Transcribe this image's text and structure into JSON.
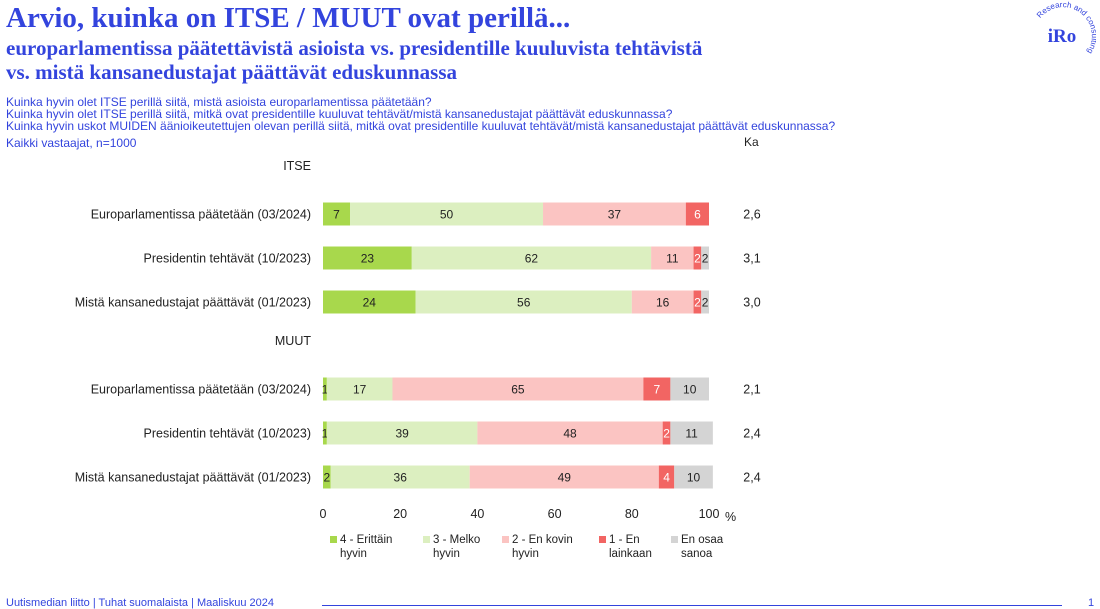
{
  "header": {
    "title": "Arvio, kuinka on ITSE / MUUT ovat perillä...",
    "subtitle_lines": [
      "europarlamentissa päätettävistä asioista vs. presidentille kuuluvista tehtävistä",
      "vs. mistä kansanedustajat päättävät eduskunnassa"
    ],
    "questions": [
      "Kuinka hyvin olet ITSE perillä siitä, mistä asioista europarlamentissa päätetään?",
      "Kuinka hyvin olet ITSE perillä siitä, mitkä ovat presidentille kuuluvat tehtävät/mistä kansanedustajat päättävät eduskunnassa?",
      "Kuinka hyvin uskot MUIDEN äänioikeutettujen olevan perillä siitä, mitkä ovat presidentille kuuluvat tehtävät/mistä kansanedustajat päättävät eduskunnassa?"
    ],
    "sample": "Kaikki vastaajat, n=1000",
    "ka_label": "Ka"
  },
  "logo": {
    "text": "iRo",
    "tagline": "Research and consulting"
  },
  "footer": {
    "source": "Uutismedian liitto | Tuhat suomalaista | Maaliskuu 2024",
    "page": "1"
  },
  "colors": {
    "brand": "#3344dd",
    "very_well": "#a8d84c",
    "fairly_well": "#dcefc0",
    "not_very_well": "#fbc4c2",
    "not_at_all": "#f26563",
    "dont_know": "#d4d4d4"
  },
  "chart_data": {
    "type": "bar",
    "orientation": "horizontal",
    "stacked": true,
    "xlim": [
      0,
      100
    ],
    "xticks": [
      "0",
      "20",
      "40",
      "60",
      "80",
      "100"
    ],
    "unit": "%",
    "groups": [
      {
        "name": "ITSE",
        "rows": [
          {
            "category": "Europarlamentissa päätetään (03/2024)",
            "values": [
              7,
              50,
              37,
              6,
              0
            ],
            "labels": [
              "7",
              "50",
              "37",
              "6",
              ""
            ],
            "mean": "2,6"
          },
          {
            "category": "Presidentin tehtävät (10/2023)",
            "values": [
              23,
              62,
              11,
              2,
              2
            ],
            "labels": [
              "23",
              "62",
              "11",
              "2",
              "2"
            ],
            "mean": "3,1"
          },
          {
            "category": "Mistä kansanedustajat päättävät (01/2023)",
            "values": [
              24,
              56,
              16,
              2,
              2
            ],
            "labels": [
              "24",
              "56",
              "16",
              "2",
              "2"
            ],
            "mean": "3,0"
          }
        ]
      },
      {
        "name": "MUUT",
        "rows": [
          {
            "category": "Europarlamentissa päätetään (03/2024)",
            "values": [
              1,
              17,
              65,
              7,
              10
            ],
            "labels": [
              "1",
              "17",
              "65",
              "7",
              "10"
            ],
            "mean": "2,1"
          },
          {
            "category": "Presidentin tehtävät (10/2023)",
            "values": [
              1,
              39,
              48,
              2,
              11
            ],
            "labels": [
              "1",
              "39",
              "48",
              "2",
              "11"
            ],
            "mean": "2,4"
          },
          {
            "category": "Mistä kansanedustajat päättävät (01/2023)",
            "values": [
              2,
              36,
              49,
              4,
              10
            ],
            "labels": [
              "2",
              "36",
              "49",
              "4",
              "10"
            ],
            "mean": "2,4"
          }
        ]
      }
    ],
    "series": [
      {
        "name": "4 - Erittäin\nhyvin",
        "color": "#a8d84c"
      },
      {
        "name": "3 - Melko\nhyvin",
        "color": "#dcefc0"
      },
      {
        "name": "2 - En kovin\nhyvin",
        "color": "#fbc4c2"
      },
      {
        "name": "1 - En\nlainkaan",
        "color": "#f26563"
      },
      {
        "name": "En osaa\nsanoa",
        "color": "#d4d4d4"
      }
    ],
    "legend_position": "bottom",
    "grid": false
  }
}
